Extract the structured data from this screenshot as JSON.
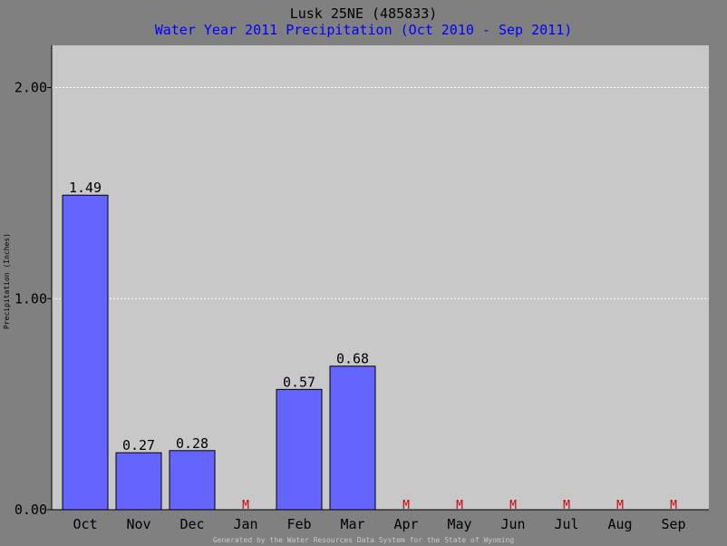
{
  "colors": {
    "background": "#808080",
    "plot_area": "#c8c8c8",
    "bar": "#6464ff",
    "missing": "#cc0000",
    "subtitle": "#0000ff",
    "gridline": "#ffffff"
  },
  "chart_data": {
    "type": "bar",
    "title": "Lusk 25NE (485833)",
    "subtitle": "Water Year 2011 Precipitation (Oct 2010 - Sep 2011)",
    "ylabel": "Precipitation (Inches)",
    "xlabel": "",
    "ylim": [
      0,
      2.2
    ],
    "yticks": [
      0,
      1,
      2
    ],
    "ytick_labels": [
      "0.00",
      "1.00",
      "2.00"
    ],
    "grid": "horizontal dotted",
    "categories": [
      "Oct",
      "Nov",
      "Dec",
      "Jan",
      "Feb",
      "Mar",
      "Apr",
      "May",
      "Jun",
      "Jul",
      "Aug",
      "Sep"
    ],
    "values": [
      1.49,
      0.27,
      0.28,
      null,
      0.57,
      0.68,
      null,
      null,
      null,
      null,
      null,
      null
    ],
    "value_labels": [
      "1.49",
      "0.27",
      "0.28",
      "",
      "0.57",
      "0.68",
      "",
      "",
      "",
      "",
      "",
      ""
    ],
    "missing_marker": "M"
  },
  "footer": "Generated by the Water Resources Data System for the State of Wyoming"
}
